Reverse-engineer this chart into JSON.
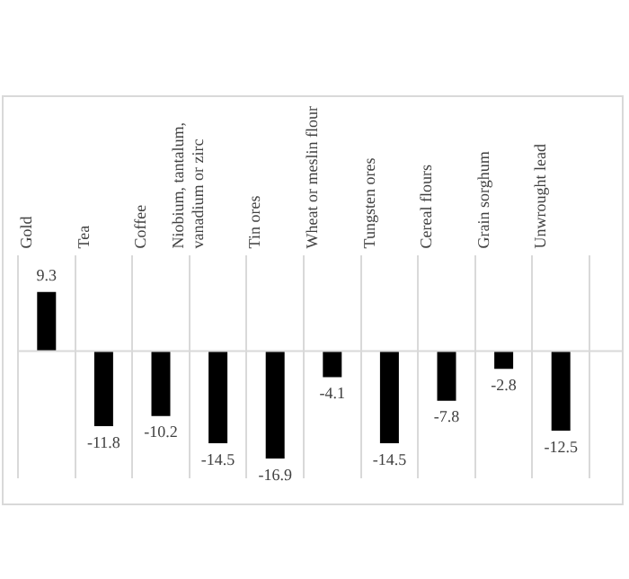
{
  "chart_data": {
    "type": "bar",
    "categories": [
      "Gold",
      "Tea",
      "Coffee",
      "Niobium, tantalum, vanadium or zirc",
      "Tin ores",
      "Wheat or meslin flour",
      "Tungsten ores",
      "Cereal flours",
      "Grain sorghum",
      "Unwrought lead"
    ],
    "values": [
      9.3,
      -11.8,
      -10.2,
      -14.5,
      -16.9,
      -4.1,
      -14.5,
      -7.8,
      -2.8,
      -12.5
    ],
    "color": "#000000",
    "data_labels": true,
    "grid": "x",
    "legend": false
  }
}
